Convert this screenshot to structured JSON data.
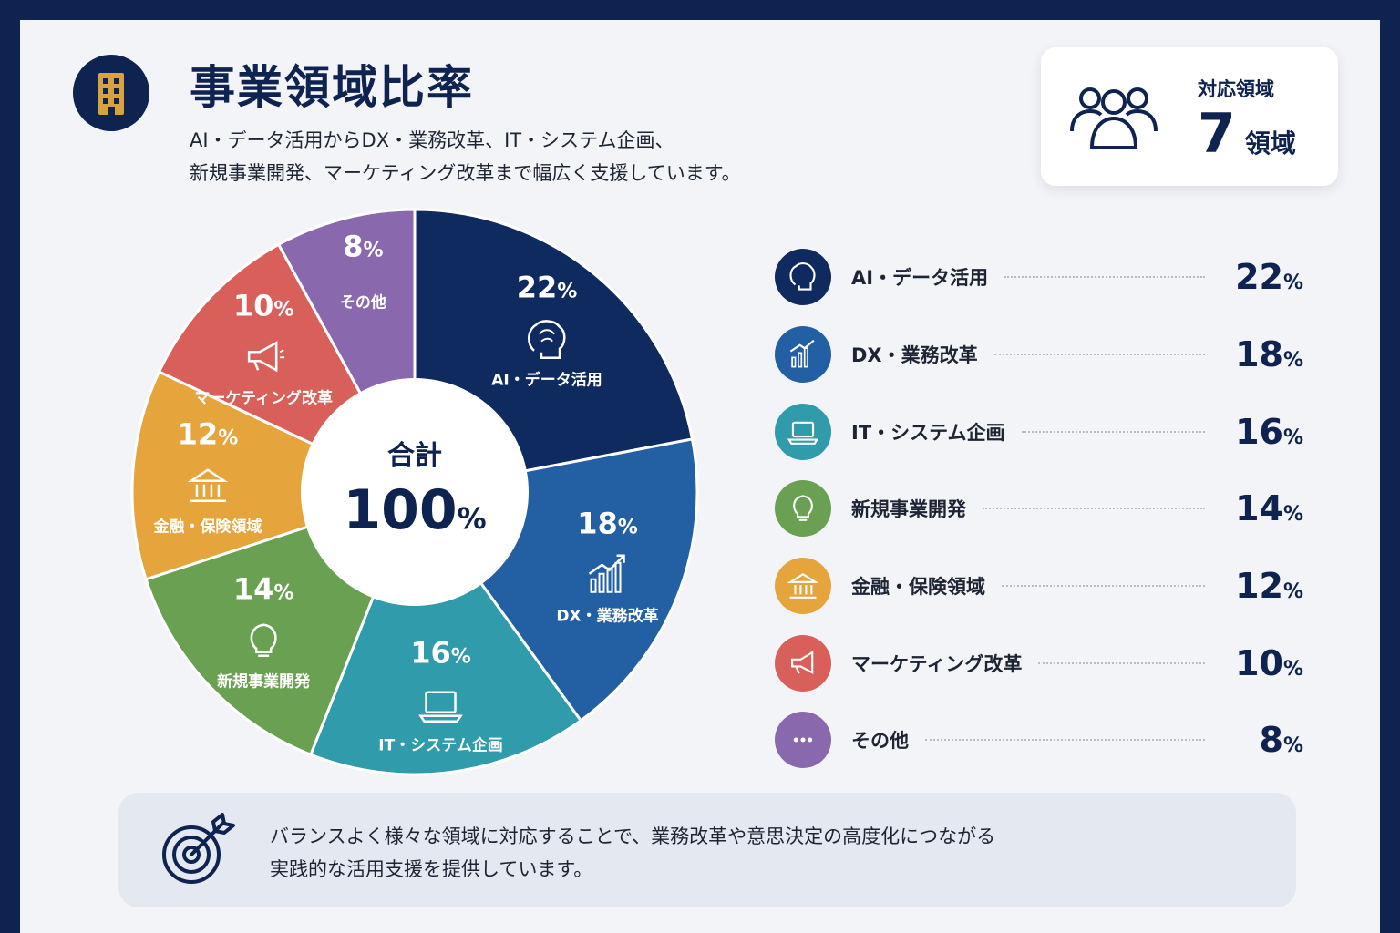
{
  "header": {
    "title": "事業領域比率",
    "subtitle_line1": "AI・データ活用からDX・業務改革、IT・システム企画、",
    "subtitle_line2": "新規事業開発、マーケティング改革まで幅広く支援しています。",
    "icon": "building-icon"
  },
  "summary": {
    "label": "対応領域",
    "value": "7",
    "unit": "領域",
    "icon": "users-icon"
  },
  "center": {
    "label": "合計",
    "value": "100",
    "unit": "%"
  },
  "chart_data": {
    "type": "pie",
    "donut": true,
    "unit": "%",
    "categories": [
      "AI・データ活用",
      "DX・業務改革",
      "IT・システム企画",
      "新規事業開発",
      "金融・保険領域",
      "マーケティング改革",
      "その他"
    ],
    "values": [
      22,
      18,
      16,
      14,
      12,
      10,
      8
    ],
    "slice_labels": [
      "AI・データ活用",
      "DX・業務改革",
      "IT・システム企画",
      "新規事業開発",
      "金融・保険領域",
      "マーケティング改革",
      "その他"
    ],
    "colors": [
      "#0f2a5f",
      "#235fa3",
      "#2f9bab",
      "#6aa052",
      "#e6a53c",
      "#d9605a",
      "#8968ad"
    ],
    "icons": [
      "brain-icon",
      "growth-chart-icon",
      "laptop-icon",
      "lightbulb-icon",
      "bank-icon",
      "megaphone-icon",
      "more-icon"
    ]
  },
  "legend": [
    {
      "label": "AI・データ活用",
      "value": "22",
      "unit": "%"
    },
    {
      "label": "DX・業務改革",
      "value": "18",
      "unit": "%"
    },
    {
      "label": "IT・システム企画",
      "value": "16",
      "unit": "%"
    },
    {
      "label": "新規事業開発",
      "value": "14",
      "unit": "%"
    },
    {
      "label": "金融・保険領域",
      "value": "12",
      "unit": "%"
    },
    {
      "label": "マーケティング改革",
      "value": "10",
      "unit": "%"
    },
    {
      "label": "その他",
      "value": "8",
      "unit": "%"
    }
  ],
  "note": {
    "line1": "バランスよく様々な領域に対応することで、業務改革や意思決定の高度化につながる",
    "line2": "実践的な活用支援を提供しています。",
    "icon": "target-icon"
  }
}
